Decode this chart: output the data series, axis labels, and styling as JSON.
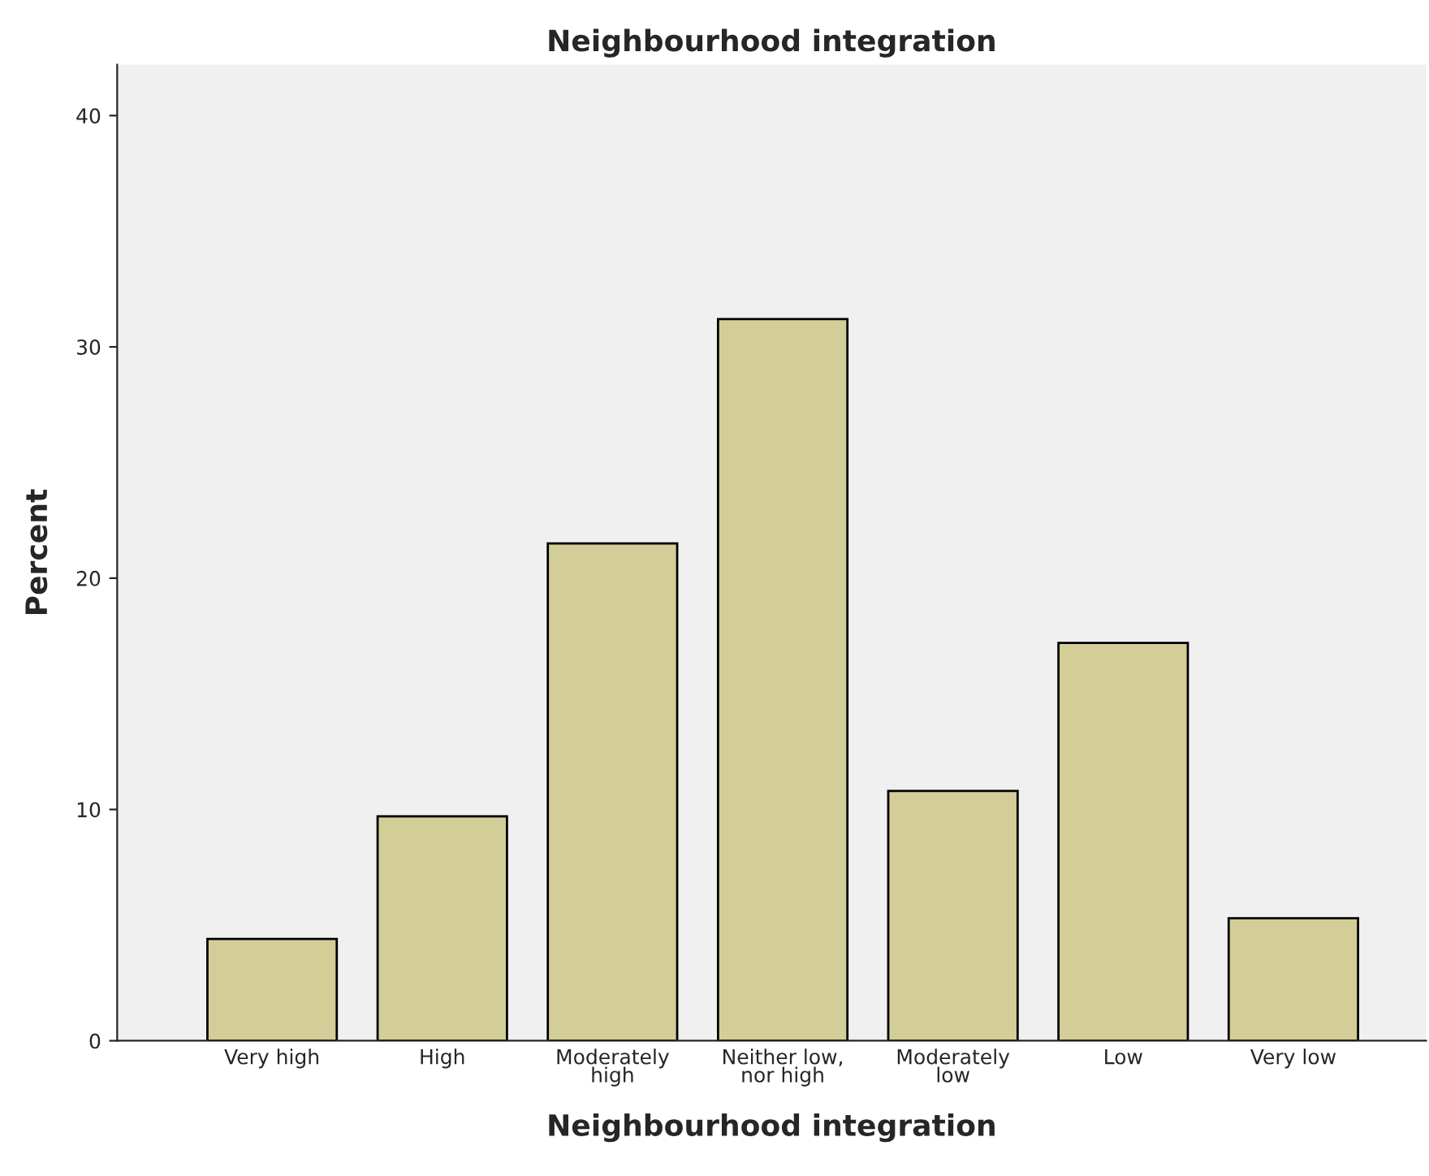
{
  "chart_data": {
    "type": "bar",
    "title": "Neighbourhood integration",
    "xlabel": "Neighbourhood integration",
    "ylabel": "Percent",
    "categories": [
      "Very high",
      "High",
      "Moderately\nhigh",
      "Neither low,\nnor high",
      "Moderately\nlow",
      "Low",
      "Very low"
    ],
    "values": [
      4.4,
      9.7,
      21.5,
      31.2,
      10.8,
      17.2,
      5.3
    ],
    "color": "#d3ce97",
    "ylim": [
      0,
      42.2
    ],
    "yticks": [
      0,
      10,
      20,
      30,
      40
    ],
    "grid": false,
    "legend": false
  }
}
